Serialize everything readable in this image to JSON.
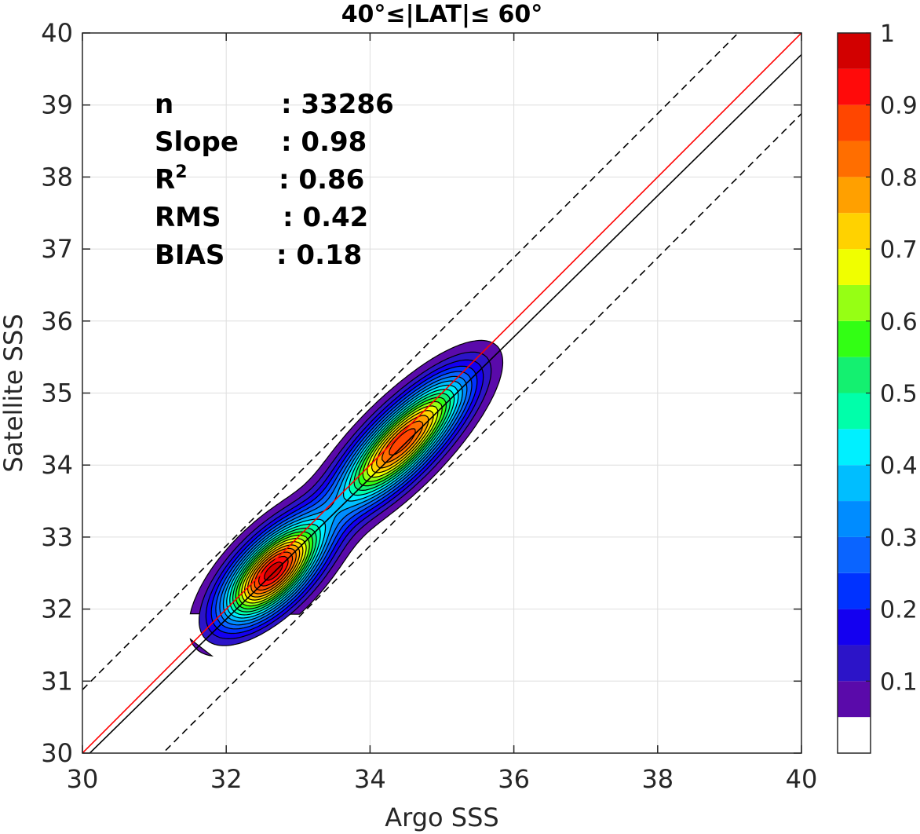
{
  "chart_data": {
    "type": "contour",
    "title": "40°≤|LAT|≤ 60°",
    "xlabel": "Argo SSS",
    "ylabel": "Satellite SSS",
    "xlim": [
      30,
      40
    ],
    "ylim": [
      30,
      40
    ],
    "x_ticks": [
      "30",
      "32",
      "34",
      "36",
      "38",
      "40"
    ],
    "y_ticks": [
      "30",
      "31",
      "32",
      "33",
      "34",
      "35",
      "36",
      "37",
      "38",
      "39",
      "40"
    ],
    "grid": true,
    "stats": [
      {
        "label": "n",
        "value": ": 33286"
      },
      {
        "label": "Slope",
        "value": ": 0.98"
      },
      {
        "label": "R",
        "sup": "2",
        "value": ": 0.86"
      },
      {
        "label": "RMS",
        "value": ": 0.42"
      },
      {
        "label": "BIAS",
        "value": ": 0.18"
      }
    ],
    "reference_lines": [
      {
        "kind": "1:1",
        "color": "#ff0000",
        "style": "solid",
        "slope": 1,
        "intercept": 0
      },
      {
        "kind": "fit",
        "color": "#000000",
        "style": "solid",
        "slope": 0.98,
        "intercept": 0.5
      },
      {
        "kind": "upper-bound",
        "color": "#000000",
        "style": "dashed",
        "slope": 1,
        "intercept": 0.88
      },
      {
        "kind": "lower-bound",
        "color": "#000000",
        "style": "dashed",
        "slope": 1,
        "intercept": -1.12
      }
    ],
    "density_peaks": [
      {
        "x": 32.65,
        "y": 32.52,
        "value": 0.98
      },
      {
        "x": 34.38,
        "y": 34.25,
        "value": 0.84
      }
    ],
    "colorbar": {
      "range": [
        0,
        1
      ],
      "tick_labels": [
        "0.1",
        "0.2",
        "0.3",
        "0.4",
        "0.5",
        "0.6",
        "0.7",
        "0.8",
        "0.9",
        "1"
      ],
      "levels": [
        0,
        0.05,
        0.1,
        0.15,
        0.2,
        0.25,
        0.3,
        0.35,
        0.4,
        0.45,
        0.5,
        0.55,
        0.6,
        0.65,
        0.7,
        0.75,
        0.8,
        0.85,
        0.9,
        0.95,
        1
      ],
      "colors": [
        "#ffffff",
        "#5a0aaa",
        "#2c14c8",
        "#1400f0",
        "#0032ff",
        "#0a64ff",
        "#008cff",
        "#00beff",
        "#00f0ff",
        "#00ffaa",
        "#14f070",
        "#32ff14",
        "#96ff14",
        "#f0ff00",
        "#ffd200",
        "#ffa000",
        "#ff6e00",
        "#ff4600",
        "#ff0a0a",
        "#d20000",
        "#8c0000"
      ]
    }
  }
}
